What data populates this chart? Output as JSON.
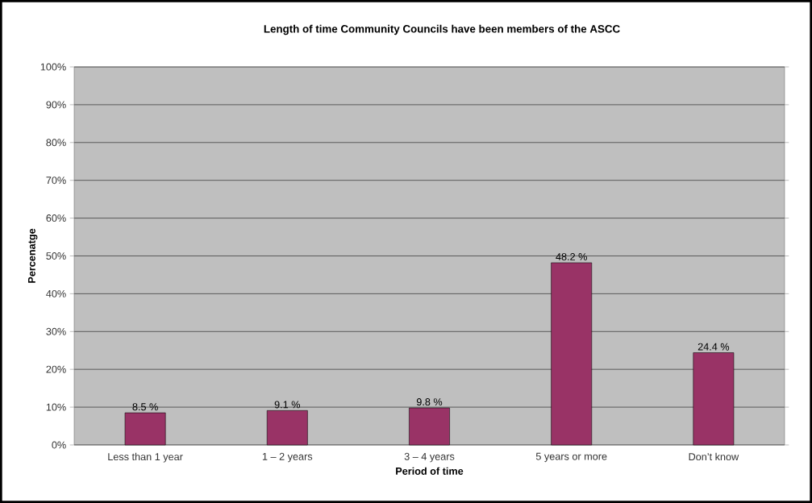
{
  "chart_data": {
    "type": "bar",
    "title": "Length of time Community Councils have been members of the ASCC",
    "xlabel": "Period of time",
    "ylabel": "Percenatge",
    "categories": [
      "Less than 1 year",
      "1 – 2 years",
      "3 – 4 years",
      "5 years or more",
      "Don’t know"
    ],
    "values": [
      8.5,
      9.1,
      9.8,
      48.2,
      24.4
    ],
    "value_labels": [
      "8.5 %",
      "9.1 %",
      "9.8 %",
      "48.2 %",
      "24.4 %"
    ],
    "color": "#993366",
    "ylim": [
      0,
      100
    ],
    "yticks": [
      {
        "value": 0,
        "label": "0%"
      },
      {
        "value": 10,
        "label": "10%"
      },
      {
        "value": 20,
        "label": "20%"
      },
      {
        "value": 30,
        "label": "30%"
      },
      {
        "value": 40,
        "label": "40%"
      },
      {
        "value": 50,
        "label": "50%"
      },
      {
        "value": 60,
        "label": "60%"
      },
      {
        "value": 70,
        "label": "70%"
      },
      {
        "value": 80,
        "label": "80%"
      },
      {
        "value": 90,
        "label": "90%"
      },
      {
        "value": 100,
        "label": "100%"
      }
    ],
    "grid": "y"
  }
}
